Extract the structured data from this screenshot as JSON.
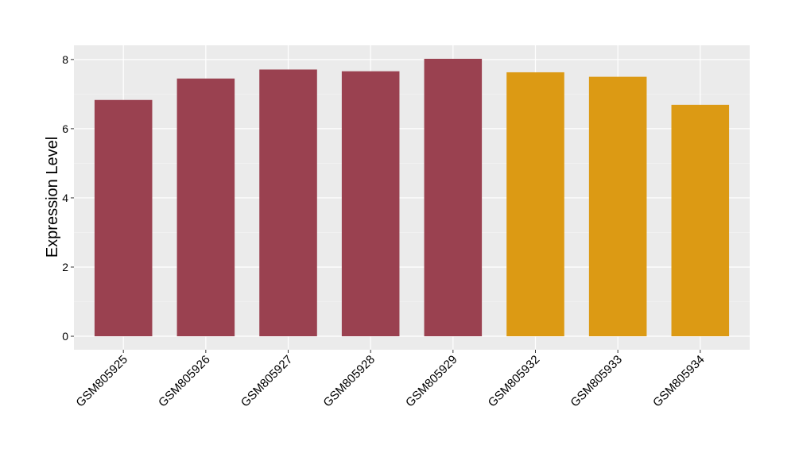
{
  "chart_data": {
    "type": "bar",
    "y_label": "Expression Level",
    "categories": [
      "GSM805925",
      "GSM805926",
      "GSM805927",
      "GSM805928",
      "GSM805929",
      "GSM805932",
      "GSM805933",
      "GSM805934"
    ],
    "values": [
      6.83,
      7.45,
      7.71,
      7.66,
      8.02,
      7.63,
      7.5,
      6.69
    ],
    "colors": [
      "#9a4150",
      "#9a4150",
      "#9a4150",
      "#9a4150",
      "#9a4150",
      "#dc9a14",
      "#dc9a14",
      "#dc9a14"
    ],
    "ylim": [
      -0.39,
      8.41
    ],
    "yticks": [
      0,
      2,
      4,
      6,
      8
    ],
    "minor_yticks": [
      1,
      3,
      5,
      7
    ],
    "grid": true
  }
}
